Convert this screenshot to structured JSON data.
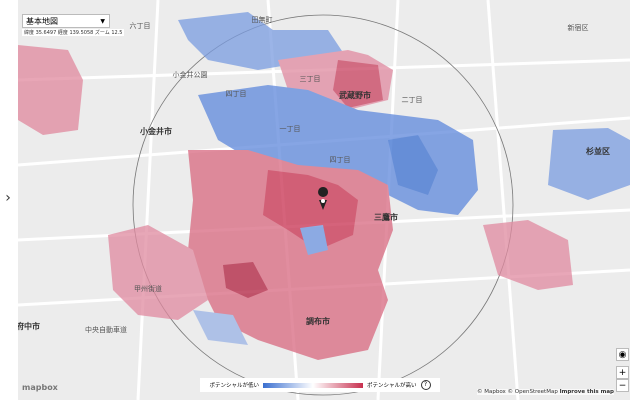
{
  "map_style": {
    "label": "基本地図"
  },
  "status": "緯度 35.6497 経度 139.5058 ズーム 12.5",
  "places": [
    "六丁目",
    "田無町",
    "小金井公園",
    "四丁目",
    "三丁目",
    "武蔵野市",
    "二丁目",
    "一丁目",
    "小金井市",
    "四丁目",
    "三鷹市",
    "調布市",
    "杉並区",
    "府中市",
    "中央自動車道",
    "甲州街道",
    "新宿区"
  ],
  "legend": {
    "low": "ポテンシャルが低い",
    "high": "ポテンシャルが高い",
    "help": "?"
  },
  "logo": "mapbox",
  "attribution": {
    "mapbox": "© Mapbox",
    "osm": "© OpenStreetMap",
    "improve": "Improve this map"
  },
  "controls": {
    "zoom_in": "+",
    "zoom_out": "−",
    "side_toggle": "›"
  }
}
